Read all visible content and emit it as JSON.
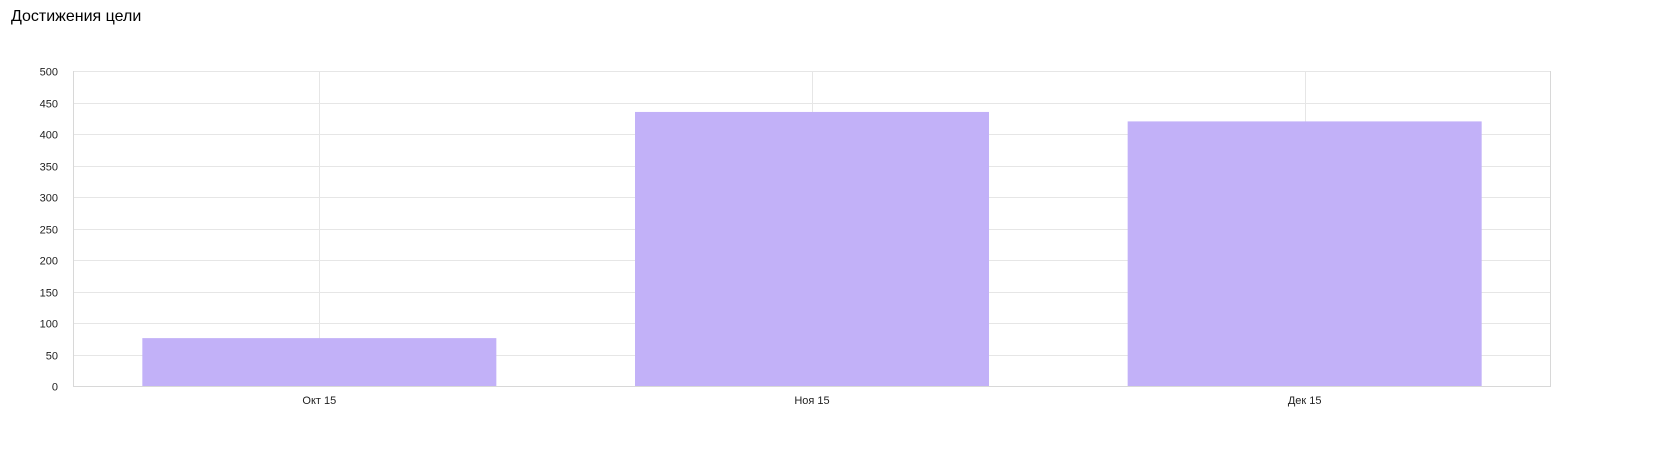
{
  "widget": {
    "title": "Достижения цели"
  },
  "chart_data": {
    "type": "bar",
    "title": "",
    "xlabel": "",
    "ylabel": "",
    "categories": [
      "Окт 15",
      "Ноя 15",
      "Дек 15"
    ],
    "series": [
      {
        "values": [
          76,
          435,
          420
        ]
      }
    ],
    "ylim": [
      0,
      500
    ],
    "yticks": [
      0,
      50,
      100,
      150,
      200,
      250,
      300,
      350,
      400,
      450,
      500
    ],
    "grid": true,
    "legend": "none",
    "colors": {
      "bar": "#c2b1f8",
      "grid": "#e6e6e6",
      "axis": "#d8d8d8"
    }
  }
}
